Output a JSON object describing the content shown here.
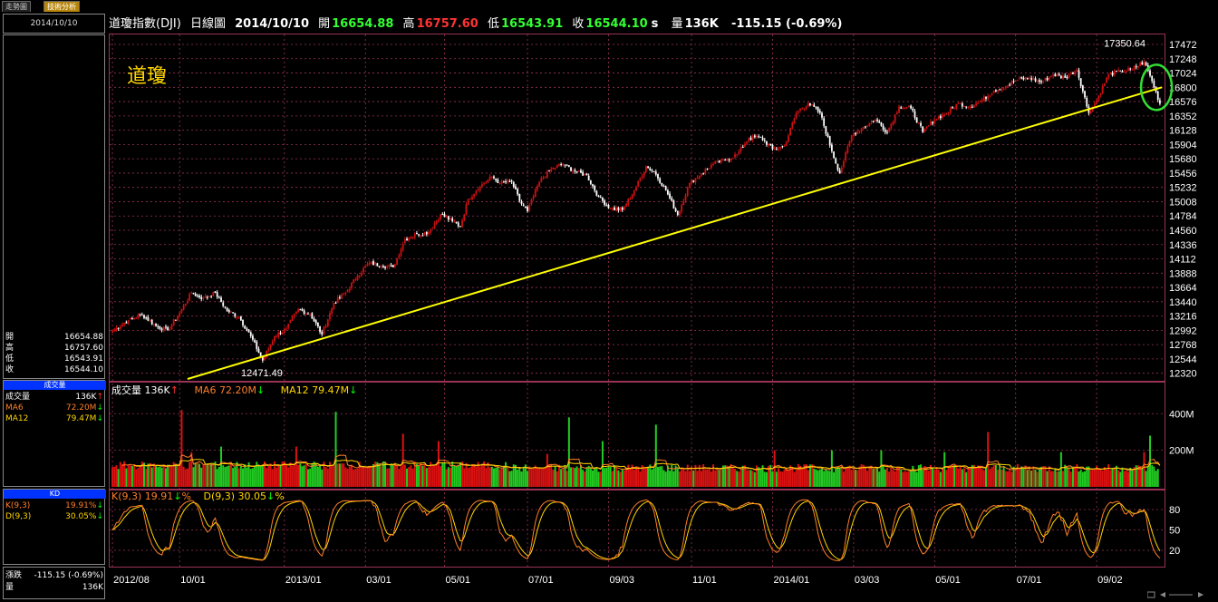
{
  "tabs": {
    "trend": "走勢圖",
    "technical": "技術分析"
  },
  "header": {
    "name": "道瓊指數(DJI)",
    "period": "日線圖",
    "date": "2014/10/10",
    "open_label": "開",
    "open": "16654.88",
    "high_label": "高",
    "high": "16757.60",
    "low_label": "低",
    "low": "16543.91",
    "close_label": "收",
    "close": "16544.10",
    "close_suffix": "s",
    "vol_label": "量",
    "vol": "136K",
    "change": "-115.15 (-0.69%)"
  },
  "left": {
    "date": "2014/10/10",
    "quote": [
      {
        "k": "開",
        "v": "16654.88"
      },
      {
        "k": "高",
        "v": "16757.60"
      },
      {
        "k": "低",
        "v": "16543.91"
      },
      {
        "k": "收",
        "v": "16544.10"
      }
    ],
    "vol_title": "成交量",
    "vol_rows": [
      {
        "k": "成交量",
        "v": "136K",
        "arrow": "↑",
        "kc": "#ffffff",
        "vc": "#ffffff",
        "ac": "#ff3333"
      },
      {
        "k": "MA6",
        "v": "72.20M",
        "arrow": "↓",
        "kc": "#ff7f27",
        "vc": "#ff7f27",
        "ac": "#00ff00"
      },
      {
        "k": "MA12",
        "v": "79.47M",
        "arrow": "↓",
        "kc": "#ffd700",
        "vc": "#ffd700",
        "ac": "#00ff00"
      }
    ],
    "kd_title": "KD",
    "kd_rows": [
      {
        "k": "K(9,3)",
        "v": "19.91%",
        "arrow": "↓",
        "kc": "#ff7f27",
        "vc": "#ff7f27",
        "ac": "#00ff00"
      },
      {
        "k": "D(9,3)",
        "v": "30.05%",
        "arrow": "↓",
        "kc": "#ffd700",
        "vc": "#ffd700",
        "ac": "#00ff00"
      }
    ],
    "bottom": [
      {
        "k": "漲跌",
        "v": "-115.15 (-0.69%)"
      },
      {
        "k": "量",
        "v": "136K"
      }
    ]
  },
  "chart_title": "道瓊",
  "vol_legend": {
    "vol_label": "成交量",
    "vol": "136K",
    "vol_arrow": "↑",
    "ma6_label": "MA6",
    "ma6": "72.20M",
    "ma6_arrow": "↓",
    "ma12_label": "MA12",
    "ma12": "79.47M",
    "ma12_arrow": "↓"
  },
  "kd_legend": {
    "k_label": "K(9,3)",
    "k": "19.91",
    "k_arrow": "↓",
    "k_pct": "%",
    "d_label": "D(9,3)",
    "d": "30.05",
    "d_arrow": "↓",
    "d_pct": "%"
  },
  "colors": {
    "up": "#cc1111",
    "down": "#ffffff",
    "vol_up": "#dd1111",
    "vol_down": "#22cc22",
    "ma6": "#ff7f27",
    "ma12": "#ffd700",
    "k": "#ff7f27",
    "d": "#ffd700",
    "trendline": "#ffff00",
    "circle": "#33dd33",
    "grid": "#993355",
    "axis_text": "#ffffff"
  },
  "chart_data": [
    {
      "type": "candlestick",
      "title": "道瓊",
      "y_ticks": [
        12320,
        12544,
        12768,
        12992,
        13216,
        13440,
        13664,
        13888,
        14112,
        14336,
        14560,
        14784,
        15008,
        15232,
        15456,
        15680,
        15904,
        16128,
        16352,
        16576,
        16800,
        17024,
        17248,
        17472
      ],
      "ylim": [
        12230,
        17600
      ],
      "x_ticks": [
        "2012/08",
        "10/01",
        "2013/01",
        "03/01",
        "05/01",
        "07/01",
        "09/03",
        "11/01",
        "2014/01",
        "03/03",
        "05/01",
        "07/01",
        "09/02"
      ],
      "x_tick_index": [
        0,
        34,
        87,
        128,
        168,
        210,
        251,
        293,
        334,
        375,
        416,
        457,
        498
      ],
      "n_bars": 531,
      "anchors": [
        [
          0,
          12990
        ],
        [
          8,
          13150
        ],
        [
          15,
          13240
        ],
        [
          22,
          13060
        ],
        [
          28,
          12990
        ],
        [
          34,
          13270
        ],
        [
          40,
          13580
        ],
        [
          46,
          13490
        ],
        [
          52,
          13580
        ],
        [
          58,
          13300
        ],
        [
          64,
          13200
        ],
        [
          70,
          12900
        ],
        [
          76,
          12520
        ],
        [
          82,
          12900
        ],
        [
          88,
          13020
        ],
        [
          94,
          13320
        ],
        [
          100,
          13250
        ],
        [
          106,
          12930
        ],
        [
          112,
          13420
        ],
        [
          118,
          13580
        ],
        [
          124,
          13850
        ],
        [
          130,
          14050
        ],
        [
          136,
          14010
        ],
        [
          142,
          13980
        ],
        [
          148,
          14420
        ],
        [
          154,
          14500
        ],
        [
          160,
          14530
        ],
        [
          166,
          14810
        ],
        [
          172,
          14700
        ],
        [
          176,
          14620
        ],
        [
          180,
          15050
        ],
        [
          186,
          15250
        ],
        [
          192,
          15400
        ],
        [
          196,
          15300
        ],
        [
          202,
          15320
        ],
        [
          206,
          15020
        ],
        [
          210,
          14860
        ],
        [
          216,
          15320
        ],
        [
          222,
          15520
        ],
        [
          228,
          15600
        ],
        [
          234,
          15480
        ],
        [
          240,
          15420
        ],
        [
          246,
          15080
        ],
        [
          252,
          14900
        ],
        [
          258,
          14880
        ],
        [
          264,
          15180
        ],
        [
          270,
          15560
        ],
        [
          274,
          15480
        ],
        [
          280,
          15190
        ],
        [
          286,
          14800
        ],
        [
          292,
          15300
        ],
        [
          298,
          15450
        ],
        [
          304,
          15600
        ],
        [
          310,
          15660
        ],
        [
          316,
          15750
        ],
        [
          322,
          16000
        ],
        [
          328,
          16020
        ],
        [
          334,
          15830
        ],
        [
          340,
          15880
        ],
        [
          346,
          16400
        ],
        [
          352,
          16550
        ],
        [
          358,
          16400
        ],
        [
          364,
          15800
        ],
        [
          368,
          15450
        ],
        [
          374,
          16050
        ],
        [
          380,
          16180
        ],
        [
          386,
          16300
        ],
        [
          392,
          16100
        ],
        [
          398,
          16500
        ],
        [
          404,
          16470
        ],
        [
          410,
          16100
        ],
        [
          416,
          16300
        ],
        [
          422,
          16400
        ],
        [
          428,
          16550
        ],
        [
          434,
          16500
        ],
        [
          440,
          16600
        ],
        [
          446,
          16750
        ],
        [
          452,
          16820
        ],
        [
          458,
          16920
        ],
        [
          464,
          16950
        ],
        [
          470,
          16880
        ],
        [
          476,
          17000
        ],
        [
          482,
          16950
        ],
        [
          488,
          17080
        ],
        [
          494,
          16400
        ],
        [
          498,
          16600
        ],
        [
          504,
          17000
        ],
        [
          510,
          17050
        ],
        [
          516,
          17080
        ],
        [
          522,
          17200
        ],
        [
          526,
          16900
        ],
        [
          530,
          16544
        ]
      ],
      "labels": [
        {
          "text": "17350.64",
          "bar": 520,
          "value": 17350.64
        },
        {
          "text": "12471.49",
          "bar": 77,
          "value": 12471.49
        }
      ],
      "trendline": {
        "from": {
          "bar": 38,
          "value": 12230
        },
        "to": {
          "bar": 531,
          "value": 16800
        }
      }
    },
    {
      "type": "bar",
      "title": "成交量",
      "y_ticks": [
        "200M",
        "400M"
      ],
      "ylim": [
        0,
        560
      ],
      "spikes": [
        [
          35,
          420
        ],
        [
          40,
          190
        ],
        [
          55,
          220
        ],
        [
          93,
          220
        ],
        [
          113,
          410
        ],
        [
          147,
          290
        ],
        [
          165,
          250
        ],
        [
          220,
          180
        ],
        [
          231,
          380
        ],
        [
          248,
          250
        ],
        [
          275,
          340
        ],
        [
          335,
          200
        ],
        [
          364,
          200
        ],
        [
          389,
          200
        ],
        [
          421,
          190
        ],
        [
          443,
          300
        ],
        [
          480,
          190
        ],
        [
          522,
          190
        ],
        [
          525,
          280
        ],
        [
          530,
          0
        ]
      ],
      "ma6_last": 72.2,
      "ma12_last": 79.47
    },
    {
      "type": "line",
      "title": "KD",
      "y_ticks": [
        20,
        50,
        80
      ],
      "ylim": [
        0,
        100
      ],
      "series": [
        {
          "name": "K(9,3)",
          "last": 19.91
        },
        {
          "name": "D(9,3)",
          "last": 30.05
        }
      ]
    }
  ]
}
